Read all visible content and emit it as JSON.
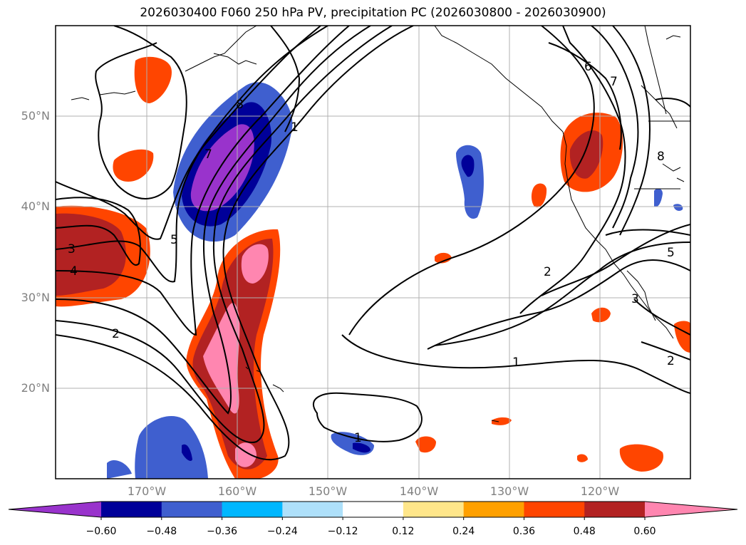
{
  "title": "2026030400 F060 250 hPa PV, precipitation PC (2026030800 - 2026030900)",
  "lat_labels": [
    "50°N",
    "40°N",
    "30°N",
    "20°N"
  ],
  "lon_labels": [
    "170°W",
    "160°W",
    "150°W",
    "140°W",
    "130°W",
    "120°W"
  ],
  "colorbar": {
    "colors": [
      "#9933cc",
      "#000099",
      "#3f5fcf",
      "#00b7ff",
      "#aee0fa",
      "#ffffff",
      "#ffe68a",
      "#ffa000",
      "#ff4500",
      "#b22222",
      "#ff86b0"
    ],
    "ticks": [
      "−0.60",
      "−0.48",
      "−0.36",
      "−0.24",
      "−0.12",
      "0.12",
      "0.24",
      "0.36",
      "0.48",
      "0.60"
    ]
  },
  "contour_labels": [
    "2",
    "3",
    "4",
    "5",
    "7",
    "8",
    "6",
    "7",
    "1",
    "2",
    "5",
    "3",
    "1",
    "2",
    "1",
    "8"
  ]
}
